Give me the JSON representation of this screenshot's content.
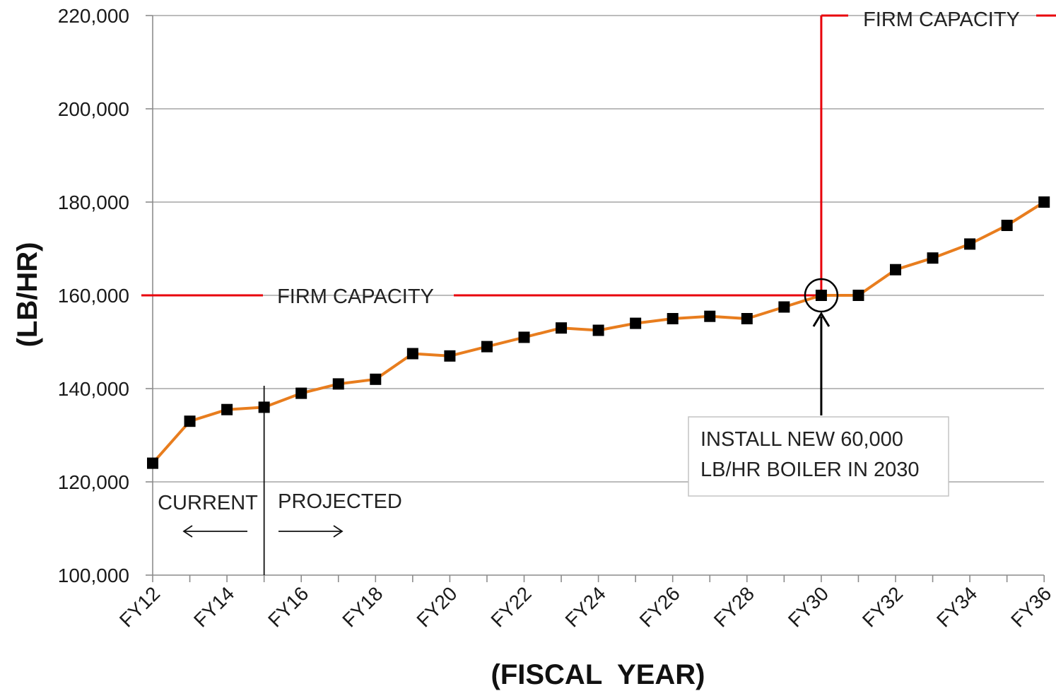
{
  "chart_data": {
    "type": "line",
    "xlabel": "(FISCAL  YEAR)",
    "ylabel": "(LB/HR)",
    "ylim": [
      100000,
      220000
    ],
    "yticks": [
      "100,000",
      "120,000",
      "140,000",
      "160,000",
      "180,000",
      "200,000",
      "220,000"
    ],
    "ytick_values": [
      100000,
      120000,
      140000,
      160000,
      180000,
      200000,
      220000
    ],
    "x": [
      "FY12",
      "FY13",
      "FY14",
      "FY15",
      "FY16",
      "FY17",
      "FY18",
      "FY19",
      "FY20",
      "FY21",
      "FY22",
      "FY23",
      "FY24",
      "FY25",
      "FY26",
      "FY27",
      "FY28",
      "FY29",
      "FY30",
      "FY31",
      "FY32",
      "FY33",
      "FY34",
      "FY35",
      "FY36"
    ],
    "xtick_labels": [
      "FY12",
      "FY14",
      "FY16",
      "FY18",
      "FY20",
      "FY22",
      "FY24",
      "FY26",
      "FY28",
      "FY30",
      "FY32",
      "FY34",
      "FY36"
    ],
    "series": [
      {
        "values": [
          124000,
          133000,
          135500,
          136000,
          139000,
          141000,
          142000,
          147500,
          147000,
          149000,
          151000,
          153000,
          152500,
          154000,
          155000,
          155500,
          155000,
          157500,
          160000,
          160000,
          165500,
          168000,
          171000,
          175000,
          180000
        ]
      }
    ],
    "firm_capacity": [
      {
        "label": "FIRM CAPACITY",
        "value": 160000,
        "from": "FY12",
        "to": "FY30"
      },
      {
        "label": "FIRM CAPACITY",
        "value": 220000,
        "from": "FY30",
        "to": "FY36"
      }
    ],
    "divider": {
      "at": "FY15",
      "left_label": "CURRENT",
      "right_label": "PROJECTED"
    },
    "callout": {
      "target": "FY30",
      "lines": [
        "INSTALL NEW 60,000",
        "LB/HR BOILER IN 2030"
      ]
    },
    "colors": {
      "line": "#e87d1e",
      "marker": "#000000",
      "capacity": "#e8000b",
      "grid": "#a6a6a6"
    },
    "grid": "horizontal"
  }
}
